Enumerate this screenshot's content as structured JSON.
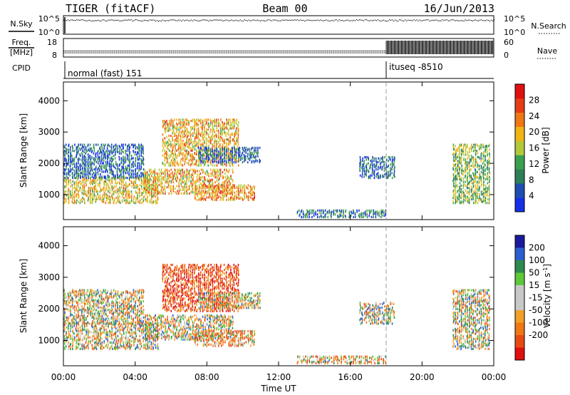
{
  "header": {
    "radar": "TIGER (fitACF)",
    "beam": "Beam 00",
    "date": "16/Jun/2013"
  },
  "strips": {
    "nsky": {
      "label": "N.Sky",
      "ticks": [
        "10^5",
        "10^0"
      ]
    },
    "nsearch": {
      "label": "N.Search",
      "ticks": [
        "10^5",
        "10^0"
      ]
    },
    "freq": {
      "label_top": "Freq.",
      "label_bottom": "[MHz]",
      "ticks": [
        "18",
        "8"
      ]
    },
    "nave": {
      "label": "Nave",
      "ticks": [
        "60",
        "0"
      ]
    },
    "cpid": {
      "label": "CPID",
      "segments": [
        {
          "name": "normal (fast) 151",
          "start_h": 0
        },
        {
          "name": "ituseq -8510",
          "start_h": 18
        }
      ]
    }
  },
  "colors": {
    "power": [
      "#1530e6",
      "#1e4fb0",
      "#2e7f58",
      "#3aa050",
      "#b4c83c",
      "#f0b414",
      "#f07814",
      "#e53c14",
      "#e01010"
    ],
    "velocity": [
      "#1a1a9e",
      "#2b5fd0",
      "#2e8a4e",
      "#5ec83a",
      "#c8c8c8",
      "#c8c8c8",
      "#f0a028",
      "#f07814",
      "#e84a14",
      "#e01010"
    ]
  },
  "chart_data": [
    {
      "type": "heatmap",
      "name": "power",
      "ylabel": "Slant Range [km]",
      "y_ticks": [
        1000,
        2000,
        3000,
        4000
      ],
      "ylim": [
        200,
        4600
      ],
      "xlim": [
        0,
        24
      ],
      "colorbar": {
        "label": "Power [dB]",
        "ticks": [
          4,
          8,
          12,
          16,
          20,
          24,
          28
        ],
        "range": [
          0,
          32
        ]
      },
      "echo_regions": [
        {
          "t": [
            0,
            5.3
          ],
          "r": [
            700,
            1550
          ],
          "db": 18
        },
        {
          "t": [
            0,
            4.5
          ],
          "r": [
            1500,
            2600
          ],
          "db": 6
        },
        {
          "t": [
            4.5,
            9.5
          ],
          "r": [
            1000,
            1800
          ],
          "db": 20
        },
        {
          "t": [
            5.5,
            9.8
          ],
          "r": [
            1900,
            3400
          ],
          "db": 20
        },
        {
          "t": [
            7.5,
            11.0
          ],
          "r": [
            2000,
            2500
          ],
          "db": 6
        },
        {
          "t": [
            7.3,
            10.7
          ],
          "r": [
            800,
            1300
          ],
          "db": 22
        },
        {
          "t": [
            13.0,
            18.0
          ],
          "r": [
            250,
            500
          ],
          "db": 8
        },
        {
          "t": [
            16.5,
            18.5
          ],
          "r": [
            1500,
            2200
          ],
          "db": 6
        },
        {
          "t": [
            21.7,
            23.8
          ],
          "r": [
            700,
            2600
          ],
          "db": 14
        }
      ]
    },
    {
      "type": "heatmap",
      "name": "velocity",
      "ylabel": "Slant Range [km]",
      "y_ticks": [
        1000,
        2000,
        3000,
        4000
      ],
      "ylim": [
        200,
        4600
      ],
      "xlim": [
        0,
        24
      ],
      "x_ticks": [
        "00:00",
        "04:00",
        "08:00",
        "12:00",
        "16:00",
        "20:00",
        "00:00"
      ],
      "xlabel": "Time UT",
      "colorbar": {
        "label": "Velocity [m s",
        "label_sup": "-1",
        "label_end": "]",
        "ticks": [
          "200",
          "100",
          "50",
          "15",
          "-15",
          "-50",
          "-100",
          "-200"
        ]
      },
      "echo_regions": [
        {
          "t": [
            0,
            5.3
          ],
          "r": [
            700,
            1550
          ],
          "v": 0
        },
        {
          "t": [
            0,
            4.5
          ],
          "r": [
            1500,
            2600
          ],
          "v": 0
        },
        {
          "t": [
            4.5,
            9.5
          ],
          "r": [
            1000,
            1800
          ],
          "v": 0
        },
        {
          "t": [
            5.5,
            9.8
          ],
          "r": [
            1900,
            3400
          ],
          "v": -150
        },
        {
          "t": [
            7.5,
            11.0
          ],
          "r": [
            2000,
            2500
          ],
          "v": 0
        },
        {
          "t": [
            7.3,
            10.7
          ],
          "r": [
            800,
            1300
          ],
          "v": -60
        },
        {
          "t": [
            13.0,
            18.0
          ],
          "r": [
            250,
            500
          ],
          "v": -20
        },
        {
          "t": [
            16.5,
            18.5
          ],
          "r": [
            1500,
            2200
          ],
          "v": 10
        },
        {
          "t": [
            21.7,
            23.8
          ],
          "r": [
            700,
            2600
          ],
          "v": 10
        }
      ]
    }
  ]
}
